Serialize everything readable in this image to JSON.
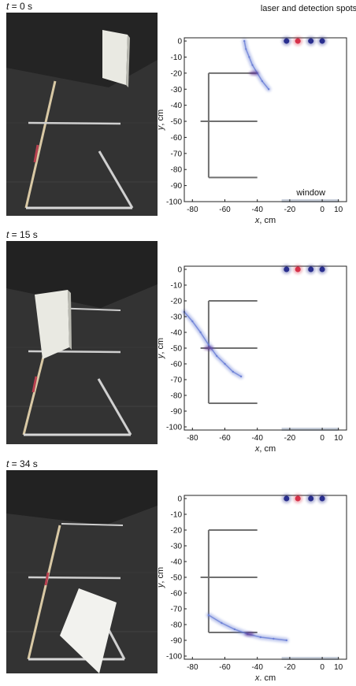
{
  "panels": [
    {
      "time_var": "t",
      "time_value": " = 0 s",
      "photo": {
        "card_position": "standing at upper right"
      },
      "chart_data": {
        "type": "scatter",
        "title": "laser and detection spots",
        "xlabel_var": "x",
        "xlabel_unit": ", cm",
        "ylabel_var": "y",
        "ylabel_unit": ", cm",
        "xlim": [
          -85,
          15
        ],
        "ylim": [
          -100,
          2
        ],
        "xticks": [
          -80,
          -60,
          -40,
          -20,
          0,
          10
        ],
        "yticks": [
          0,
          -10,
          -20,
          -30,
          -40,
          -50,
          -60,
          -70,
          -80,
          -90,
          -100
        ],
        "window_label": "window",
        "window_span": [
          -25,
          10
        ],
        "spots": [
          {
            "x": -22,
            "y": 0,
            "kind": "detection"
          },
          {
            "x": -15,
            "y": 0,
            "kind": "laser"
          },
          {
            "x": -7,
            "y": 0,
            "kind": "detection"
          },
          {
            "x": 0,
            "y": 0,
            "kind": "detection"
          }
        ],
        "obstacle": {
          "spine_x": -70,
          "spine_y": [
            -20,
            -85
          ],
          "arms_to_x": -40,
          "arm_ys": [
            -20,
            -50,
            -85
          ],
          "left_stub_x": -75
        },
        "reconstruction": [
          {
            "x": -48,
            "y": 0
          },
          {
            "x": -47,
            "y": -5
          },
          {
            "x": -45,
            "y": -10
          },
          {
            "x": -43,
            "y": -15
          },
          {
            "x": -40,
            "y": -20
          },
          {
            "x": -37,
            "y": -25
          },
          {
            "x": -33,
            "y": -30
          }
        ],
        "reconstruction_peak": {
          "x": -42,
          "y": -20
        }
      }
    },
    {
      "time_var": "t",
      "time_value": " = 15 s",
      "photo": {
        "card_position": "standing on the middle bar"
      },
      "chart_data": {
        "type": "scatter",
        "title": "",
        "xlabel_var": "x",
        "xlabel_unit": ", cm",
        "ylabel_var": "y",
        "ylabel_unit": ", cm",
        "xlim": [
          -85,
          15
        ],
        "ylim": [
          -102,
          2
        ],
        "xticks": [
          -80,
          -60,
          -40,
          -20,
          0,
          10
        ],
        "yticks": [
          0,
          -10,
          -20,
          -30,
          -40,
          -50,
          -60,
          -70,
          -80,
          -90,
          -100
        ],
        "window_label": "",
        "window_span": [
          -25,
          10
        ],
        "spots": [
          {
            "x": -22,
            "y": 0,
            "kind": "detection"
          },
          {
            "x": -15,
            "y": 0,
            "kind": "laser"
          },
          {
            "x": -7,
            "y": 0,
            "kind": "detection"
          },
          {
            "x": 0,
            "y": 0,
            "kind": "detection"
          }
        ],
        "obstacle": {
          "spine_x": -70,
          "spine_y": [
            -20,
            -85
          ],
          "arms_to_x": -40,
          "arm_ys": [
            -20,
            -50,
            -85
          ],
          "left_stub_x": -75
        },
        "reconstruction": [
          {
            "x": -85,
            "y": -27
          },
          {
            "x": -80,
            "y": -33
          },
          {
            "x": -75,
            "y": -40
          },
          {
            "x": -70,
            "y": -48
          },
          {
            "x": -65,
            "y": -55
          },
          {
            "x": -60,
            "y": -60
          },
          {
            "x": -55,
            "y": -65
          },
          {
            "x": -50,
            "y": -68
          }
        ],
        "reconstruction_peak": {
          "x": -70,
          "y": -50
        }
      }
    },
    {
      "time_var": "t",
      "time_value": " = 34 s",
      "photo": {
        "card_position": "leaning at bottom"
      },
      "chart_data": {
        "type": "scatter",
        "title": "",
        "xlabel_var": "x",
        "xlabel_unit": ". cm",
        "ylabel_var": "y",
        "ylabel_unit": ", cm",
        "xlim": [
          -85,
          15
        ],
        "ylim": [
          -102,
          2
        ],
        "xticks": [
          -80,
          -60,
          -40,
          -20,
          0,
          10
        ],
        "yticks": [
          0,
          -10,
          -20,
          -30,
          -40,
          -50,
          -60,
          -70,
          -80,
          -90,
          -100
        ],
        "window_label": "",
        "window_span": [
          -25,
          10
        ],
        "spots": [
          {
            "x": -22,
            "y": 0,
            "kind": "detection"
          },
          {
            "x": -15,
            "y": 0,
            "kind": "laser"
          },
          {
            "x": -7,
            "y": 0,
            "kind": "detection"
          },
          {
            "x": 0,
            "y": 0,
            "kind": "detection"
          }
        ],
        "obstacle": {
          "spine_x": -70,
          "spine_y": [
            -20,
            -85
          ],
          "arms_to_x": -40,
          "arm_ys": [
            -20,
            -50,
            -85
          ],
          "left_stub_x": -75
        },
        "reconstruction": [
          {
            "x": -70,
            "y": -74
          },
          {
            "x": -62,
            "y": -79
          },
          {
            "x": -54,
            "y": -83
          },
          {
            "x": -46,
            "y": -86
          },
          {
            "x": -38,
            "y": -88
          },
          {
            "x": -30,
            "y": -89
          },
          {
            "x": -22,
            "y": -90
          }
        ],
        "reconstruction_peak": {
          "x": -45,
          "y": -86
        }
      }
    }
  ],
  "colors": {
    "detection_spot": "#2a2f8f",
    "laser_spot": "#d6324a",
    "obstacle": "#707070",
    "reconstruction": "#6a7fd6",
    "reconstruction_peak": "#5a2c8c",
    "window": "#b8c0d0"
  }
}
